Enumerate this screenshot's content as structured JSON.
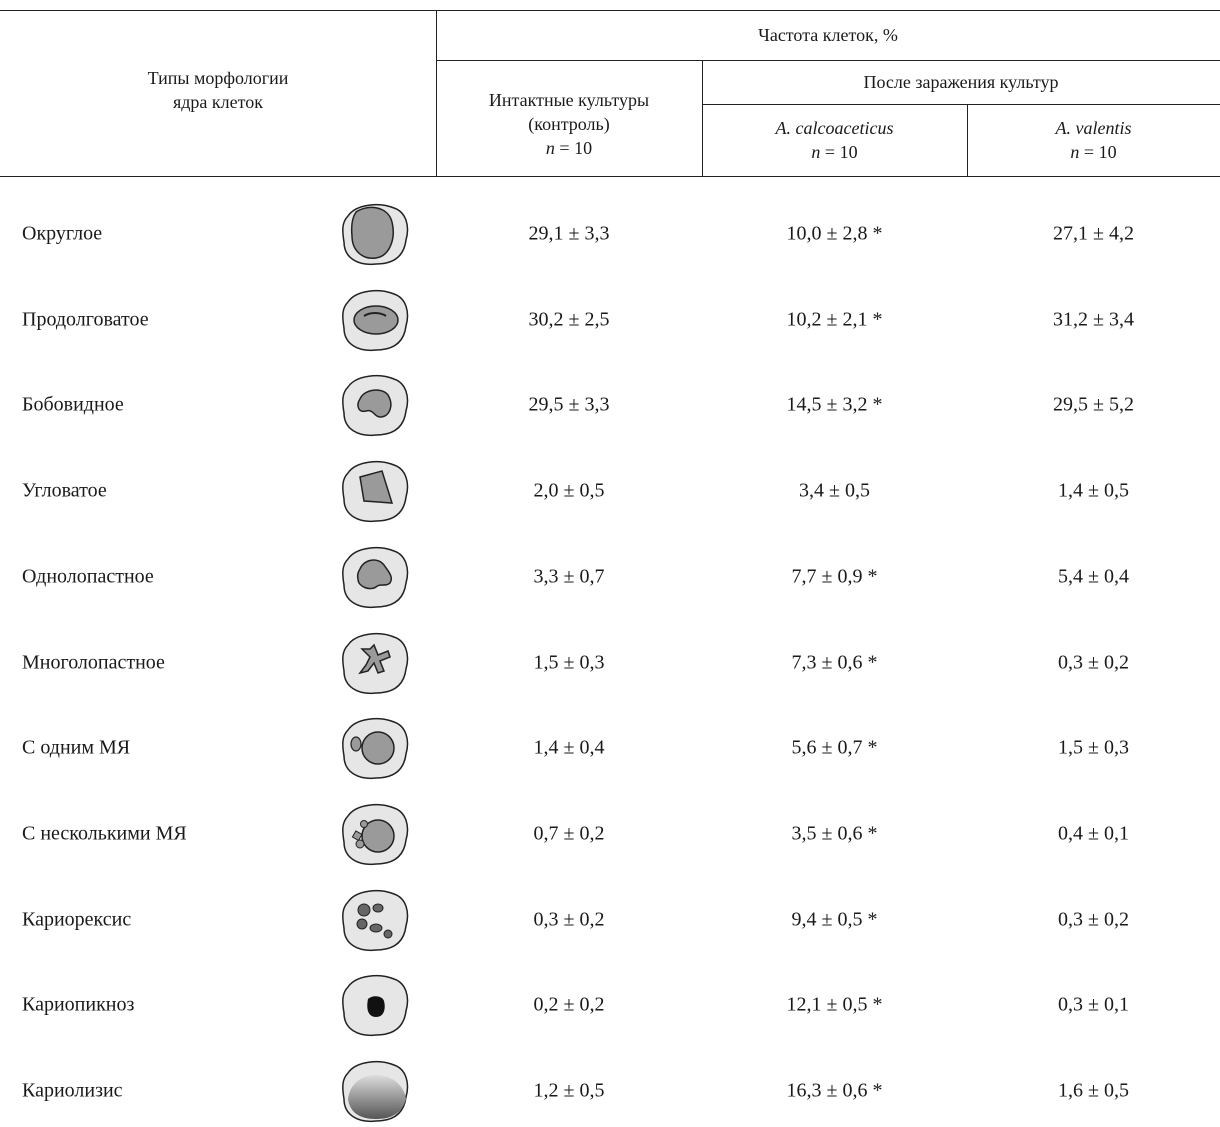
{
  "table": {
    "header": {
      "row_label": [
        "Типы морфологии",
        "ядра клеток"
      ],
      "group": "Частота клеток, %",
      "control": {
        "lines": [
          "Интактные культуры",
          "(контроль)"
        ],
        "n_var": "n",
        "n_eq": "= 10"
      },
      "infected": "После заражения культур",
      "strain1": {
        "name": "A. calcoaceticus",
        "n_var": "n",
        "n_eq": "= 10"
      },
      "strain2": {
        "name": "A. valentis",
        "n_var": "n",
        "n_eq": "= 10"
      }
    },
    "rows": [
      [
        "Округлое",
        "29,1 ± 3,3",
        "10,0 ± 2,8 *",
        "27,1 ± 4,2"
      ],
      [
        "Продолговатое",
        "30,2 ± 2,5",
        "10,2 ± 2,1 *",
        "31,2 ± 3,4"
      ],
      [
        "Бобовидное",
        "29,5 ± 3,3",
        "14,5 ± 3,2 *",
        "29,5 ± 5,2"
      ],
      [
        "Угловатое",
        "2,0 ± 0,5",
        "3,4 ± 0,5",
        "1,4 ± 0,5"
      ],
      [
        "Однолопастное",
        "3,3 ± 0,7",
        "7,7 ± 0,9 *",
        "5,4 ± 0,4"
      ],
      [
        "Многолопастное",
        "1,5 ± 0,3",
        "7,3 ± 0,6 *",
        "0,3 ± 0,2"
      ],
      [
        "С одним МЯ",
        "1,4 ± 0,4",
        "5,6 ± 0,7 *",
        "1,5 ± 0,3"
      ],
      [
        "С несколькими МЯ",
        "0,7 ± 0,2",
        "3,5 ± 0,6 *",
        "0,4 ± 0,1"
      ],
      [
        "Кариорексис",
        "0,3 ± 0,2",
        "9,4 ± 0,5 *",
        "0,3 ± 0,2"
      ],
      [
        "Кариопикноз",
        "0,2 ± 0,2",
        "12,1 ± 0,5 *",
        "0,3 ± 0,1"
      ],
      [
        "Кариолизис",
        "1,2 ± 0,5",
        "16,3 ± 0,6 *",
        "1,6 ± 0,5"
      ]
    ]
  }
}
